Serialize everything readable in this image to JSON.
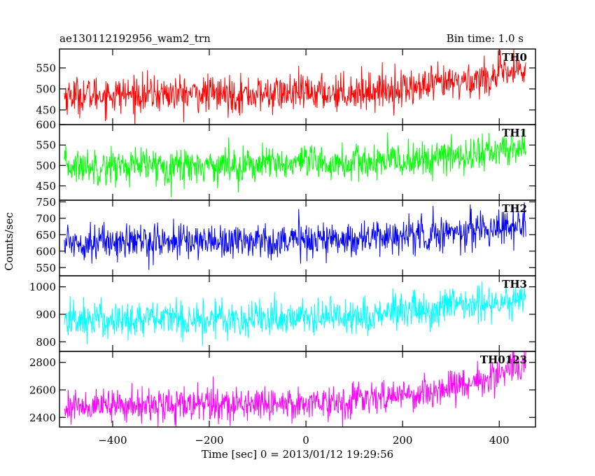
{
  "header": {
    "left_title": "ae130112192956_wam2_trn",
    "right_title": "Bin time: 1.0 s"
  },
  "chart_data": {
    "type": "line",
    "title": "ae130112192956_wam2_trn",
    "bin_time": "Bin time: 1.0 s",
    "xlabel": "Time [sec] 0 = 2013/01/12 19:29:56",
    "ylabel": "Counts/sec",
    "x_range": [
      -510,
      475
    ],
    "x_ticks": [
      -400,
      -200,
      0,
      200,
      400
    ],
    "x_tick_labels": [
      "−400",
      "−200",
      "0",
      "200",
      "400"
    ],
    "data_x_range": [
      -500,
      455
    ],
    "panels": [
      {
        "name": "TH0",
        "color": "#ff0000",
        "ylim": [
          415,
          595
        ],
        "yticks": [
          450,
          500,
          550
        ],
        "ytick_labels": [
          "450",
          "500",
          "550"
        ],
        "trend": [
          [
            -500,
            485
          ],
          [
            -300,
            488
          ],
          [
            -100,
            487
          ],
          [
            100,
            493
          ],
          [
            250,
            505
          ],
          [
            350,
            522
          ],
          [
            455,
            545
          ]
        ],
        "noise": 22
      },
      {
        "name": "TH1",
        "color": "#00ff00",
        "ylim": [
          415,
          600
        ],
        "yticks": [
          450,
          500,
          550,
          600
        ],
        "ytick_labels": [
          "450",
          "500",
          "550",
          "600"
        ],
        "trend": [
          [
            -500,
            498
          ],
          [
            -300,
            500
          ],
          [
            -100,
            502
          ],
          [
            100,
            505
          ],
          [
            250,
            515
          ],
          [
            350,
            528
          ],
          [
            455,
            545
          ]
        ],
        "noise": 22
      },
      {
        "name": "TH2",
        "color": "#0000ff",
        "ylim": [
          525,
          755
        ],
        "yticks": [
          550,
          600,
          650,
          700,
          750
        ],
        "ytick_labels": [
          "550",
          "600",
          "650",
          "700",
          "750"
        ],
        "trend": [
          [
            -500,
            628
          ],
          [
            -300,
            630
          ],
          [
            -100,
            632
          ],
          [
            100,
            638
          ],
          [
            250,
            650
          ],
          [
            350,
            665
          ],
          [
            455,
            685
          ]
        ],
        "noise": 27
      },
      {
        "name": "TH3",
        "color": "#00ffff",
        "ylim": [
          765,
          1040
        ],
        "yticks": [
          800,
          900,
          1000
        ],
        "ytick_labels": [
          "800",
          "900",
          "1000"
        ],
        "trend": [
          [
            -500,
            880
          ],
          [
            -300,
            883
          ],
          [
            -100,
            886
          ],
          [
            100,
            895
          ],
          [
            250,
            912
          ],
          [
            350,
            935
          ],
          [
            455,
            965
          ]
        ],
        "noise": 35
      },
      {
        "name": "TH0123",
        "color": "#ff00ff",
        "ylim": [
          2330,
          2880
        ],
        "yticks": [
          2400,
          2600,
          2800
        ],
        "ytick_labels": [
          "2400",
          "2600",
          "2800"
        ],
        "trend": [
          [
            -500,
            2480
          ],
          [
            -300,
            2490
          ],
          [
            -100,
            2500
          ],
          [
            100,
            2520
          ],
          [
            250,
            2580
          ],
          [
            350,
            2660
          ],
          [
            455,
            2780
          ]
        ],
        "noise": 60
      }
    ]
  }
}
